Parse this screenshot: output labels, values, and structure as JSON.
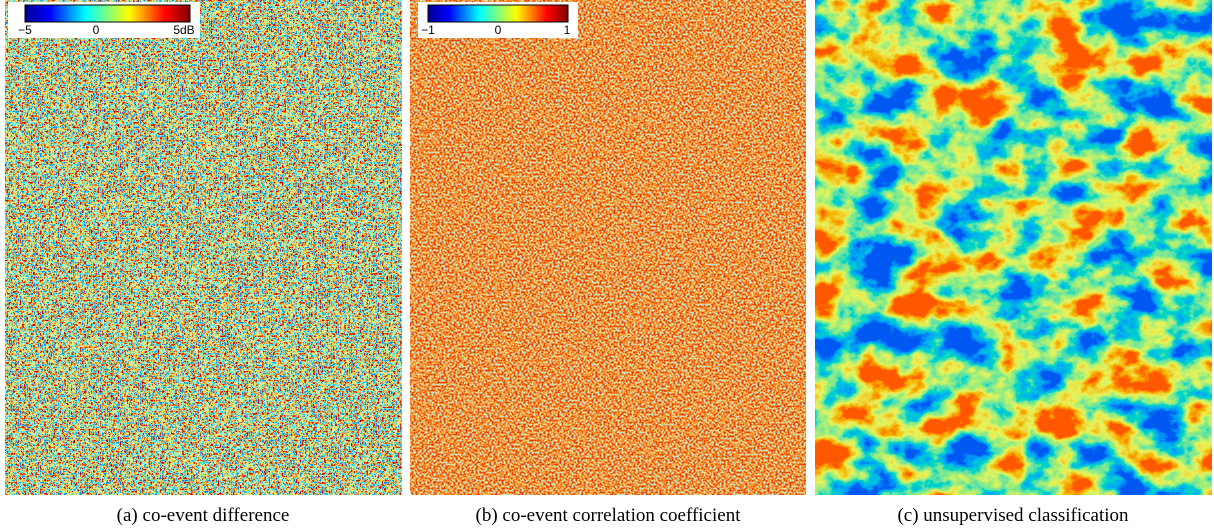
{
  "panels": [
    {
      "caption": "(a) co-event difference",
      "colorbar": {
        "labels": [
          "−5",
          "0",
          "5dB"
        ]
      }
    },
    {
      "caption": "(b) co-event correlation coefficient",
      "colorbar": {
        "labels": [
          "−1",
          "0",
          "1"
        ]
      }
    },
    {
      "caption": "(c) unsupervised classification"
    }
  ]
}
